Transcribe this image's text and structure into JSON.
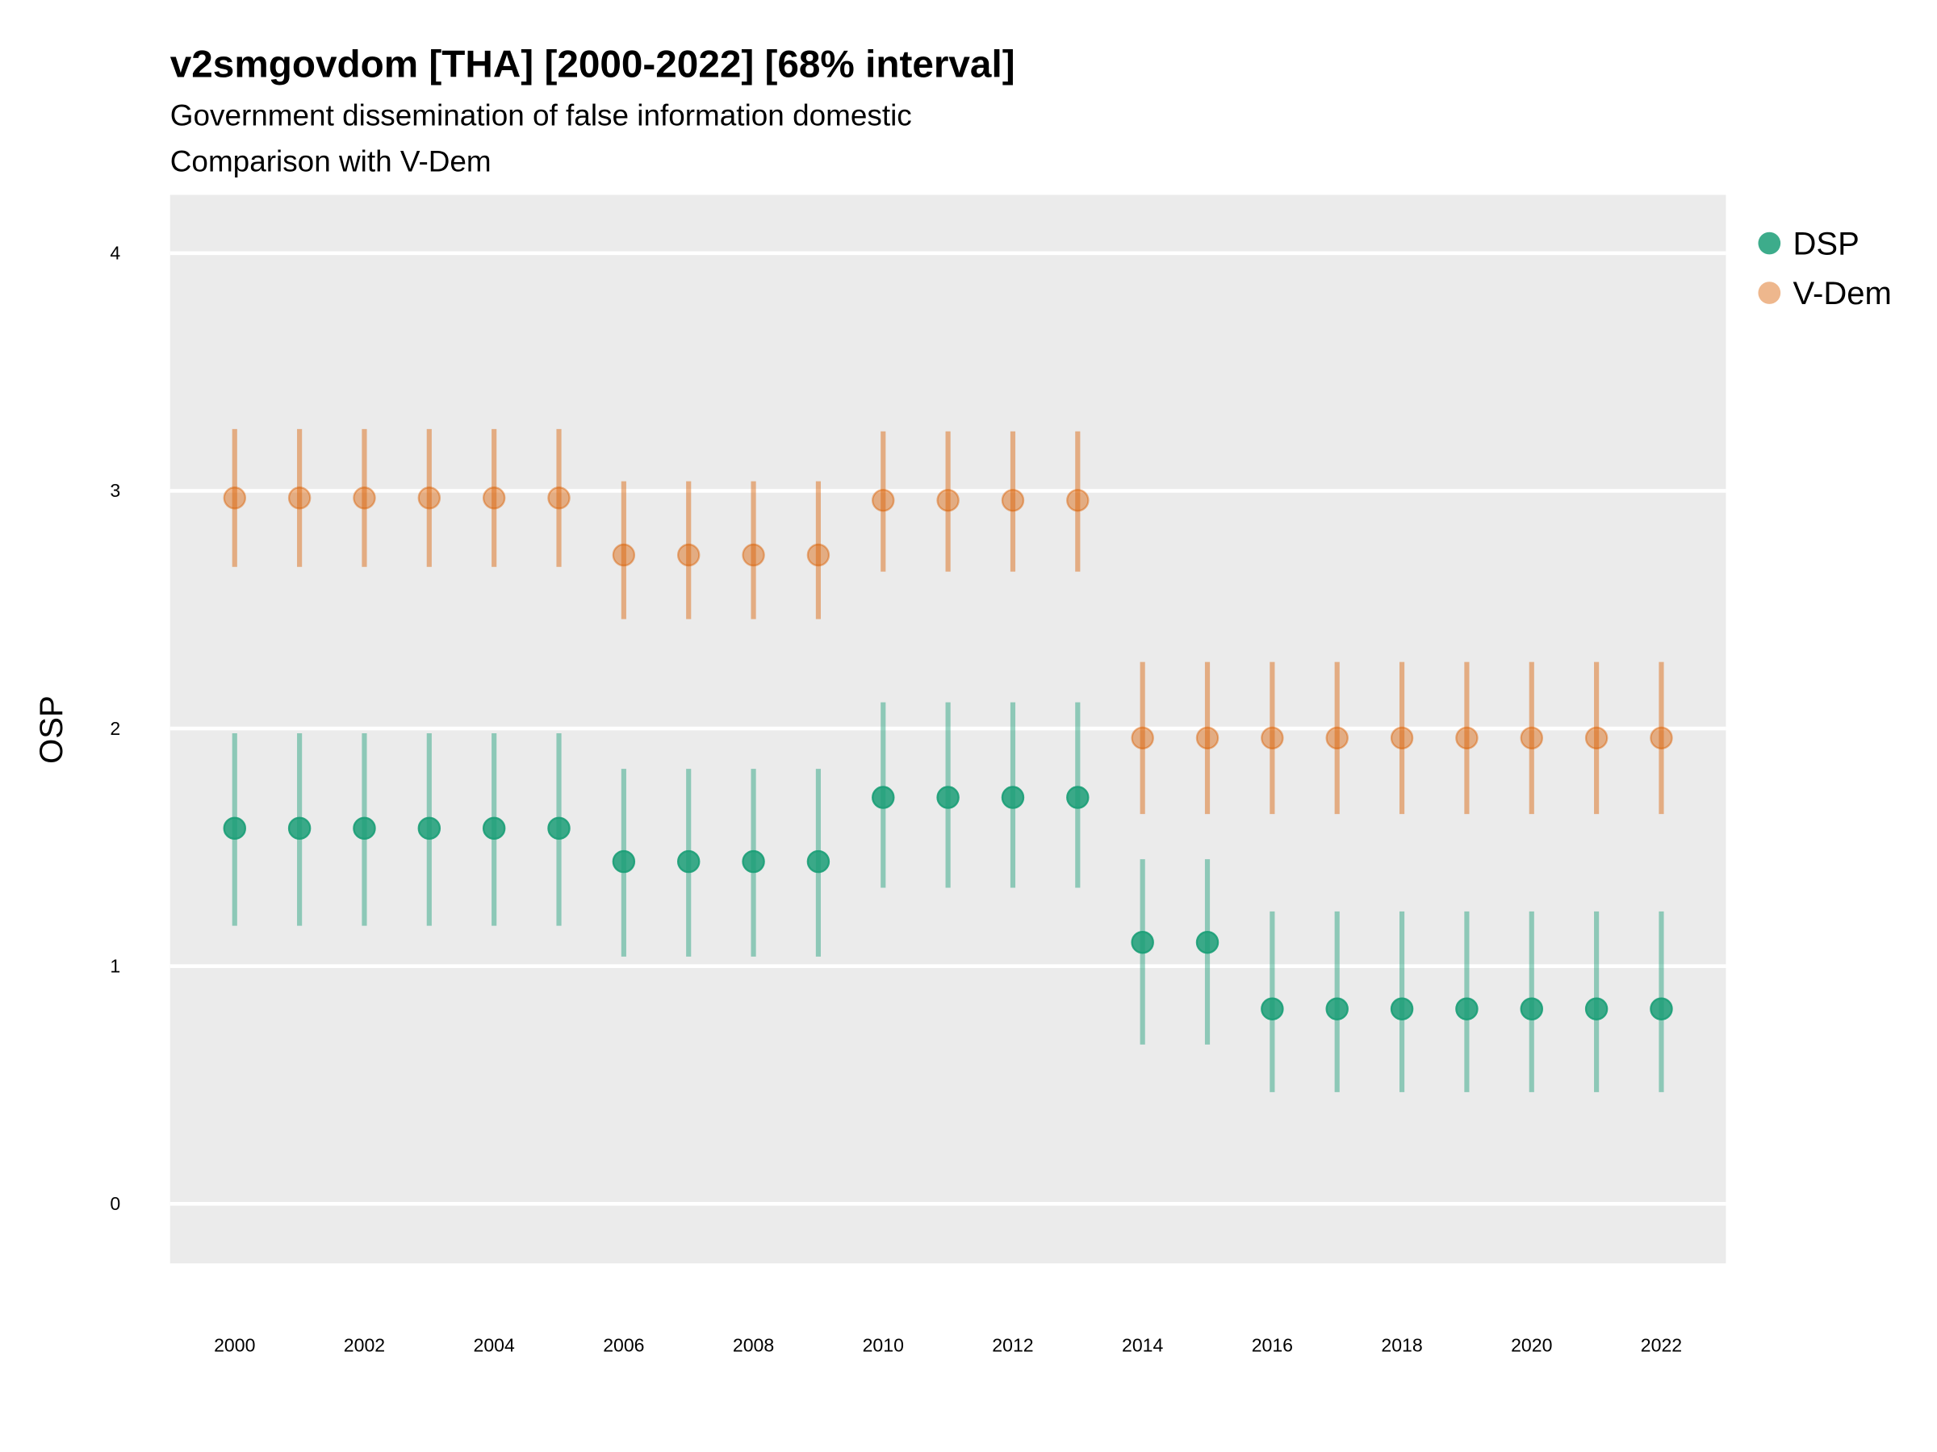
{
  "chart_data": {
    "type": "scatter",
    "title": "v2smgovdom [THA] [2000-2022] [68% interval]",
    "subtitle": "Government dissemination of false information domestic",
    "subtitle2": "Comparison with V-Dem",
    "xlabel": "",
    "ylabel": "OSP",
    "ylim": [
      -0.25,
      4.25
    ],
    "yticks": [
      "0",
      "1",
      "2",
      "3",
      "4"
    ],
    "xticks": [
      "2000",
      "2002",
      "2004",
      "2006",
      "2008",
      "2010",
      "2012",
      "2014",
      "2016",
      "2018",
      "2020",
      "2022"
    ],
    "grid": true,
    "legend_position": "right",
    "x": [
      2000,
      2001,
      2002,
      2003,
      2004,
      2005,
      2006,
      2007,
      2008,
      2009,
      2010,
      2011,
      2012,
      2013,
      2014,
      2015,
      2016,
      2017,
      2018,
      2019,
      2020,
      2021,
      2022
    ],
    "series": [
      {
        "name": "DSP",
        "color": "#1b9e77",
        "values": [
          1.58,
          1.58,
          1.58,
          1.58,
          1.58,
          1.58,
          1.44,
          1.44,
          1.44,
          1.44,
          1.71,
          1.71,
          1.71,
          1.71,
          1.1,
          1.1,
          0.82,
          0.82,
          0.82,
          0.82,
          0.82,
          0.82,
          0.82
        ],
        "lower": [
          1.17,
          1.17,
          1.17,
          1.17,
          1.17,
          1.17,
          1.04,
          1.04,
          1.04,
          1.04,
          1.33,
          1.33,
          1.33,
          1.33,
          0.67,
          0.67,
          0.47,
          0.47,
          0.47,
          0.47,
          0.47,
          0.47,
          0.47
        ],
        "upper": [
          1.98,
          1.98,
          1.98,
          1.98,
          1.98,
          1.98,
          1.83,
          1.83,
          1.83,
          1.83,
          2.11,
          2.11,
          2.11,
          2.11,
          1.45,
          1.45,
          1.23,
          1.23,
          1.23,
          1.23,
          1.23,
          1.23,
          1.23
        ]
      },
      {
        "name": "V-Dem",
        "color": "#d95f02",
        "values": [
          2.97,
          2.97,
          2.97,
          2.97,
          2.97,
          2.97,
          2.73,
          2.73,
          2.73,
          2.73,
          2.96,
          2.96,
          2.96,
          2.96,
          1.96,
          1.96,
          1.96,
          1.96,
          1.96,
          1.96,
          1.96,
          1.96,
          1.96
        ],
        "lower": [
          2.68,
          2.68,
          2.68,
          2.68,
          2.68,
          2.68,
          2.46,
          2.46,
          2.46,
          2.46,
          2.66,
          2.66,
          2.66,
          2.66,
          1.64,
          1.64,
          1.64,
          1.64,
          1.64,
          1.64,
          1.64,
          1.64,
          1.64
        ],
        "upper": [
          3.26,
          3.26,
          3.26,
          3.26,
          3.26,
          3.26,
          3.04,
          3.04,
          3.04,
          3.04,
          3.25,
          3.25,
          3.25,
          3.25,
          2.28,
          2.28,
          2.28,
          2.28,
          2.28,
          2.28,
          2.28,
          2.28,
          2.28
        ]
      }
    ]
  }
}
